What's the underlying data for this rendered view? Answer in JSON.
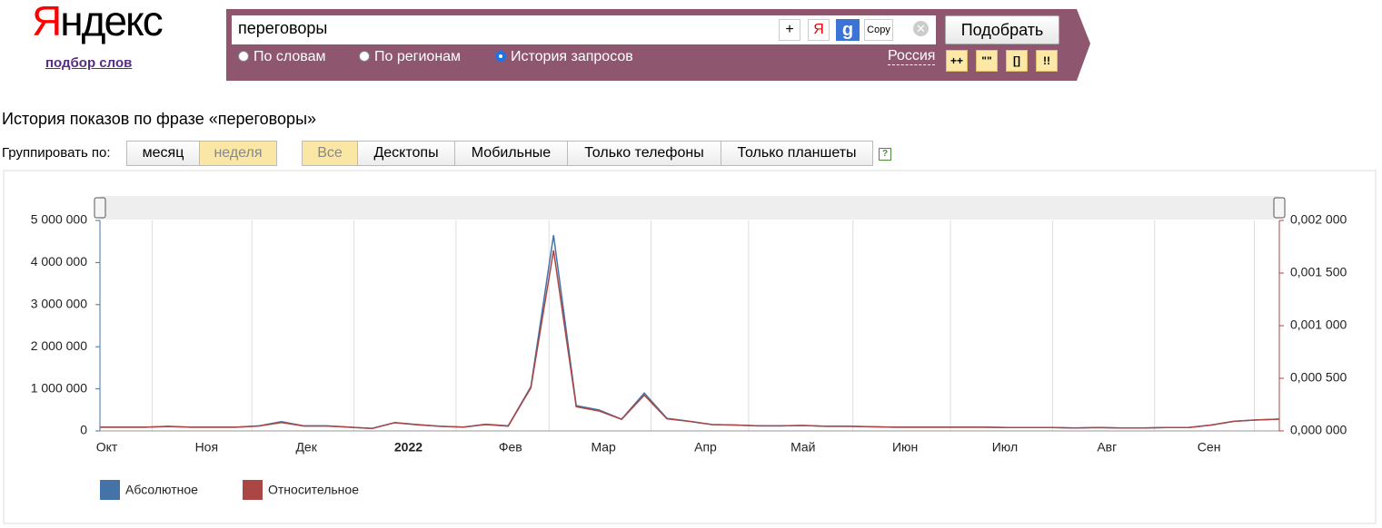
{
  "header": {
    "logo": "Яндекс",
    "subtitle": "подбор слов",
    "query": "переговоры",
    "buttons": [
      "+",
      "Я",
      "g",
      "Copy"
    ],
    "submit": "Подобрать",
    "modes": [
      "По словам",
      "По регионам",
      "История запросов"
    ],
    "region": "Россия",
    "operators": [
      "++",
      "\"\"",
      "[]",
      "!!"
    ]
  },
  "heading": "История показов по фразе «переговоры»",
  "group_label": "Группировать по:",
  "group_options": [
    "месяц",
    "неделя"
  ],
  "device_tabs": [
    "Все",
    "Десктопы",
    "Мобильные",
    "Только телефоны",
    "Только планшеты"
  ],
  "help": "?",
  "chart_data": {
    "type": "line",
    "xlim": [
      0,
      52
    ],
    "xticks": [
      {
        "value": 0.3,
        "label": "Окт"
      },
      {
        "value": 4.7,
        "label": "Ноя"
      },
      {
        "value": 9.1,
        "label": "Дек"
      },
      {
        "value": 13.6,
        "label": "2022"
      },
      {
        "value": 18.1,
        "label": "Фев"
      },
      {
        "value": 22.2,
        "label": "Мар"
      },
      {
        "value": 26.7,
        "label": "Апр"
      },
      {
        "value": 31.0,
        "label": "Май"
      },
      {
        "value": 35.5,
        "label": "Июн"
      },
      {
        "value": 39.9,
        "label": "Июл"
      },
      {
        "value": 44.4,
        "label": "Авг"
      },
      {
        "value": 48.9,
        "label": "Сен"
      }
    ],
    "xgrid": [
      2.3,
      6.7,
      11.2,
      15.7,
      19.8,
      24.3,
      28.6,
      33.2,
      37.5,
      42.0,
      46.5,
      50.9
    ],
    "ylim": [
      0,
      5000000
    ],
    "yticks": [
      {
        "value": 0,
        "label": "0"
      },
      {
        "value": 1000000,
        "label": "1 000 000"
      },
      {
        "value": 2000000,
        "label": "2 000 000"
      },
      {
        "value": 3000000,
        "label": "3 000 000"
      },
      {
        "value": 4000000,
        "label": "4 000 000"
      },
      {
        "value": 5000000,
        "label": "5 000 000"
      }
    ],
    "y2lim": [
      0,
      0.002
    ],
    "y2ticks": [
      {
        "value": 0,
        "label": "0,000 000"
      },
      {
        "value": 0.0005,
        "label": "0,000 500"
      },
      {
        "value": 0.001,
        "label": "0,001 000"
      },
      {
        "value": 0.0015,
        "label": "0,001 500"
      },
      {
        "value": 0.002,
        "label": "0,002 000"
      }
    ],
    "series": [
      {
        "name": "Абсолютное",
        "color": "#4572a7",
        "values": [
          90000,
          90000,
          90000,
          110000,
          90000,
          90000,
          90000,
          120000,
          220000,
          120000,
          120000,
          90000,
          60000,
          200000,
          150000,
          110000,
          90000,
          160000,
          120000,
          1050000,
          4650000,
          600000,
          500000,
          280000,
          900000,
          300000,
          230000,
          150000,
          140000,
          120000,
          120000,
          130000,
          110000,
          110000,
          100000,
          90000,
          90000,
          90000,
          90000,
          90000,
          80000,
          80000,
          80000,
          70000,
          80000,
          70000,
          70000,
          80000,
          80000,
          140000,
          230000,
          260000,
          280000
        ]
      },
      {
        "name": "Относительное",
        "color": "#aa4643",
        "axis": "y2",
        "values": [
          3.6e-05,
          3.6e-05,
          3.6e-05,
          4.2e-05,
          3.6e-05,
          3.6e-05,
          3.6e-05,
          4.6e-05,
          8e-05,
          4.6e-05,
          4.6e-05,
          3.6e-05,
          2.4e-05,
          7.8e-05,
          5.8e-05,
          4.4e-05,
          3.6e-05,
          6e-05,
          4.6e-05,
          0.00041,
          0.001716,
          0.00023,
          0.00019,
          0.00011,
          0.00034,
          0.000115,
          9e-05,
          6e-05,
          5.6e-05,
          4.8e-05,
          4.8e-05,
          5.2e-05,
          4.4e-05,
          4.4e-05,
          4e-05,
          3.6e-05,
          3.6e-05,
          3.6e-05,
          3.6e-05,
          3.6e-05,
          3.2e-05,
          3.2e-05,
          3.2e-05,
          2.8e-05,
          3.2e-05,
          2.8e-05,
          2.8e-05,
          3.2e-05,
          3.2e-05,
          5.6e-05,
          9.2e-05,
          0.000104,
          0.000112
        ]
      }
    ]
  }
}
